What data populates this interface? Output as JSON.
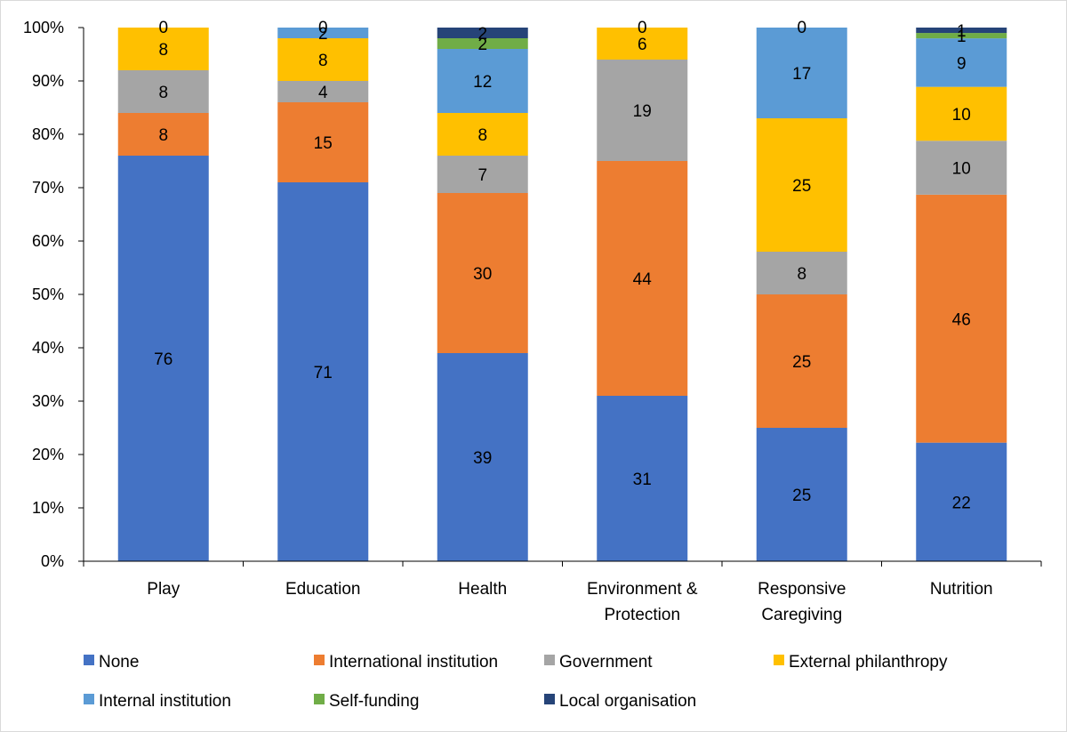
{
  "chart_data": {
    "type": "bar",
    "stacked": true,
    "percent_stacked": true,
    "categories": [
      [
        "Play"
      ],
      [
        "Education"
      ],
      [
        "Health"
      ],
      [
        "Environment &",
        "Protection"
      ],
      [
        "Responsive",
        "Caregiving"
      ],
      [
        "Nutrition"
      ]
    ],
    "series": [
      {
        "name": "None",
        "color": "#4472C4",
        "values": [
          76,
          71,
          39,
          31,
          25,
          22
        ]
      },
      {
        "name": "International institution",
        "color": "#ED7D31",
        "values": [
          8,
          15,
          30,
          44,
          25,
          46
        ]
      },
      {
        "name": "Government",
        "color": "#A5A5A5",
        "values": [
          8,
          4,
          7,
          19,
          8,
          10
        ]
      },
      {
        "name": "External philanthropy",
        "color": "#FFC000",
        "values": [
          8,
          8,
          8,
          6,
          25,
          10
        ]
      },
      {
        "name": "Internal institution",
        "color": "#5B9BD5",
        "values": [
          0,
          2,
          12,
          0,
          17,
          9
        ]
      },
      {
        "name": "Self-funding",
        "color": "#70AD47",
        "values": [
          0,
          0,
          2,
          0,
          0,
          1
        ]
      },
      {
        "name": "Local organisation",
        "color": "#264478",
        "values": [
          0,
          0,
          2,
          0,
          0,
          1
        ]
      }
    ],
    "data_labels": [
      [
        {
          "series": 0,
          "text": "76"
        },
        {
          "series": 1,
          "text": "8"
        },
        {
          "series": 2,
          "text": "8"
        },
        {
          "series": 3,
          "text": "8"
        },
        {
          "series": 3,
          "text": "0",
          "at_top": true
        }
      ],
      [
        {
          "series": 0,
          "text": "71"
        },
        {
          "series": 1,
          "text": "15"
        },
        {
          "series": 2,
          "text": "4"
        },
        {
          "series": 3,
          "text": "8"
        },
        {
          "series": 4,
          "text": "2"
        },
        {
          "series": 4,
          "text": "0",
          "at_top": true
        }
      ],
      [
        {
          "series": 0,
          "text": "39"
        },
        {
          "series": 1,
          "text": "30"
        },
        {
          "series": 2,
          "text": "7"
        },
        {
          "series": 3,
          "text": "8"
        },
        {
          "series": 4,
          "text": "12"
        },
        {
          "series": 5,
          "text": "2"
        },
        {
          "series": 6,
          "text": "2"
        }
      ],
      [
        {
          "series": 0,
          "text": "31"
        },
        {
          "series": 1,
          "text": "44"
        },
        {
          "series": 2,
          "text": "19"
        },
        {
          "series": 3,
          "text": "6"
        },
        {
          "series": 3,
          "text": "0",
          "at_top": true
        }
      ],
      [
        {
          "series": 0,
          "text": "25"
        },
        {
          "series": 1,
          "text": "25"
        },
        {
          "series": 2,
          "text": "8"
        },
        {
          "series": 3,
          "text": "25"
        },
        {
          "series": 4,
          "text": "17"
        },
        {
          "series": 4,
          "text": "0",
          "at_top": true
        }
      ],
      [
        {
          "series": 0,
          "text": "22"
        },
        {
          "series": 1,
          "text": "46"
        },
        {
          "series": 2,
          "text": "10"
        },
        {
          "series": 3,
          "text": "10"
        },
        {
          "series": 4,
          "text": "9"
        },
        {
          "series": 5,
          "text": "1"
        },
        {
          "series": 6,
          "text": "1"
        }
      ]
    ],
    "y_ticks": [
      "0%",
      "10%",
      "20%",
      "30%",
      "40%",
      "50%",
      "60%",
      "70%",
      "80%",
      "90%",
      "100%"
    ],
    "ylim": [
      0,
      100
    ],
    "grid": false,
    "legend_position": "bottom",
    "title": "",
    "xlabel": "",
    "ylabel": ""
  }
}
